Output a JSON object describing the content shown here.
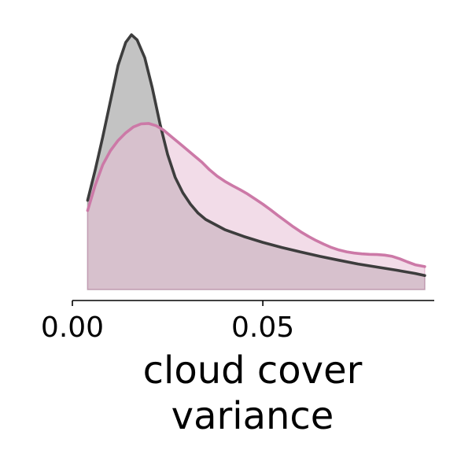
{
  "chart_data": {
    "type": "area",
    "title": "",
    "xlabel_lines": [
      "cloud cover",
      "variance"
    ],
    "ylabel": "",
    "xlim": [
      0.0,
      0.095
    ],
    "ylim": [
      0,
      10.5
    ],
    "xticks": [
      {
        "value": 0.0,
        "label": "0.00"
      },
      {
        "value": 0.05,
        "label": "0.05"
      }
    ],
    "yticks": [],
    "grid": false,
    "legend": "none",
    "series": [
      {
        "color": "#3d3d3d",
        "fill": "#c3c3c3",
        "points": [
          [
            0.004,
            3.5
          ],
          [
            0.006,
            4.7
          ],
          [
            0.008,
            6.0
          ],
          [
            0.01,
            7.4
          ],
          [
            0.012,
            8.8
          ],
          [
            0.014,
            9.7
          ],
          [
            0.0155,
            10.0
          ],
          [
            0.017,
            9.8
          ],
          [
            0.019,
            9.1
          ],
          [
            0.021,
            7.9
          ],
          [
            0.023,
            6.5
          ],
          [
            0.025,
            5.3
          ],
          [
            0.027,
            4.4
          ],
          [
            0.029,
            3.8
          ],
          [
            0.031,
            3.35
          ],
          [
            0.033,
            3.0
          ],
          [
            0.035,
            2.75
          ],
          [
            0.04,
            2.35
          ],
          [
            0.045,
            2.08
          ],
          [
            0.05,
            1.85
          ],
          [
            0.055,
            1.65
          ],
          [
            0.06,
            1.47
          ],
          [
            0.065,
            1.3
          ],
          [
            0.07,
            1.15
          ],
          [
            0.075,
            1.0
          ],
          [
            0.08,
            0.88
          ],
          [
            0.085,
            0.76
          ],
          [
            0.09,
            0.63
          ],
          [
            0.0925,
            0.55
          ]
        ]
      },
      {
        "color": "#cc79a7",
        "fill": "#e7bfd5",
        "points": [
          [
            0.004,
            3.1
          ],
          [
            0.006,
            4.1
          ],
          [
            0.008,
            4.9
          ],
          [
            0.01,
            5.45
          ],
          [
            0.012,
            5.85
          ],
          [
            0.014,
            6.15
          ],
          [
            0.016,
            6.38
          ],
          [
            0.018,
            6.5
          ],
          [
            0.02,
            6.52
          ],
          [
            0.022,
            6.43
          ],
          [
            0.024,
            6.25
          ],
          [
            0.026,
            6.0
          ],
          [
            0.028,
            5.75
          ],
          [
            0.03,
            5.5
          ],
          [
            0.032,
            5.25
          ],
          [
            0.034,
            5.0
          ],
          [
            0.036,
            4.7
          ],
          [
            0.038,
            4.45
          ],
          [
            0.04,
            4.25
          ],
          [
            0.042,
            4.08
          ],
          [
            0.044,
            3.92
          ],
          [
            0.046,
            3.75
          ],
          [
            0.048,
            3.55
          ],
          [
            0.05,
            3.35
          ],
          [
            0.052,
            3.13
          ],
          [
            0.054,
            2.9
          ],
          [
            0.056,
            2.68
          ],
          [
            0.058,
            2.46
          ],
          [
            0.06,
            2.26
          ],
          [
            0.062,
            2.08
          ],
          [
            0.064,
            1.92
          ],
          [
            0.066,
            1.78
          ],
          [
            0.068,
            1.65
          ],
          [
            0.07,
            1.55
          ],
          [
            0.072,
            1.48
          ],
          [
            0.074,
            1.43
          ],
          [
            0.076,
            1.4
          ],
          [
            0.078,
            1.38
          ],
          [
            0.08,
            1.37
          ],
          [
            0.082,
            1.35
          ],
          [
            0.084,
            1.3
          ],
          [
            0.086,
            1.2
          ],
          [
            0.088,
            1.08
          ],
          [
            0.09,
            0.97
          ],
          [
            0.0925,
            0.9
          ]
        ]
      }
    ]
  }
}
